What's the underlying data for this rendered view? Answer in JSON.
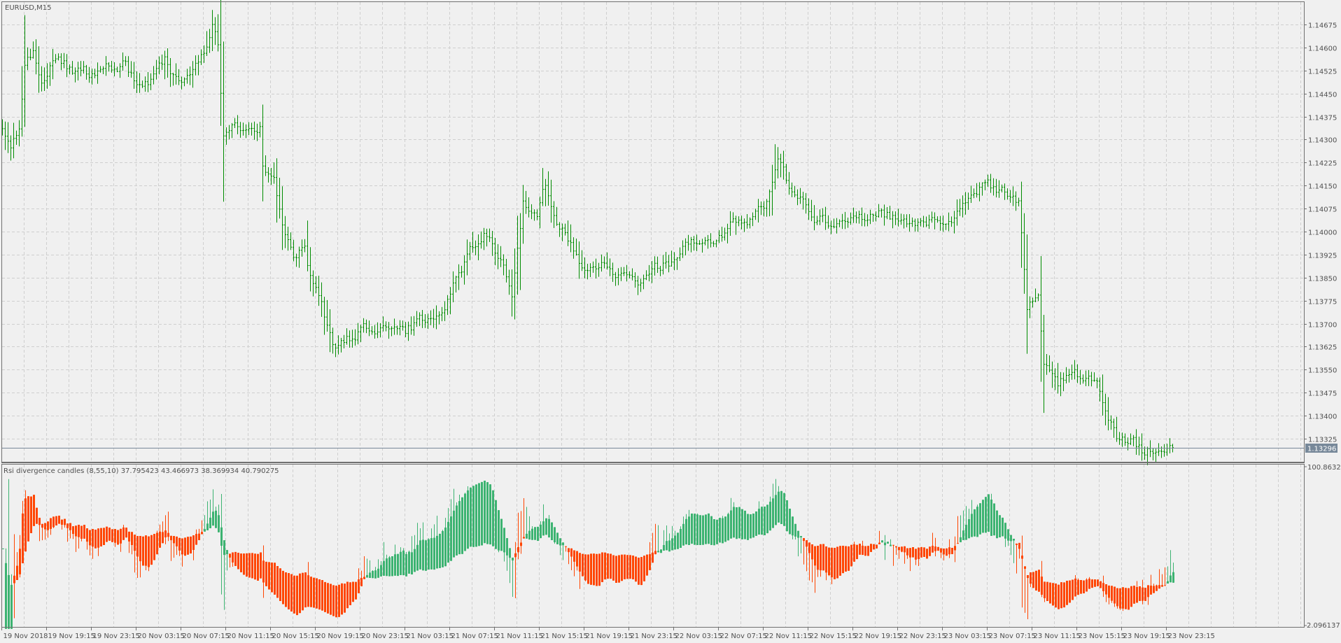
{
  "window": {
    "symbol_label": "EURUSD,M15"
  },
  "indicator": {
    "label": "Rsi divergence candles (8,55,10) 37.795423 43.466973 38.369934 40.790275",
    "scale_max": "100.863248",
    "scale_min": "2.096137"
  },
  "price_axis": {
    "ticks": [
      "1.14675",
      "1.14600",
      "1.14525",
      "1.14450",
      "1.14375",
      "1.14300",
      "1.14225",
      "1.14150",
      "1.14075",
      "1.14000",
      "1.13925",
      "1.13850",
      "1.13775",
      "1.13700",
      "1.13625",
      "1.13550",
      "1.13475",
      "1.13400",
      "1.13325"
    ],
    "current_price": "1.13296"
  },
  "time_axis": {
    "labels": [
      "19 Nov 2018",
      "19 Nov 19:15",
      "19 Nov 23:15",
      "20 Nov 03:15",
      "20 Nov 07:15",
      "20 Nov 11:15",
      "20 Nov 15:15",
      "20 Nov 19:15",
      "20 Nov 23:15",
      "21 Nov 03:15",
      "21 Nov 07:15",
      "21 Nov 11:15",
      "21 Nov 15:15",
      "21 Nov 19:15",
      "21 Nov 23:15",
      "22 Nov 03:15",
      "22 Nov 07:15",
      "22 Nov 11:15",
      "22 Nov 15:15",
      "22 Nov 19:15",
      "22 Nov 23:15",
      "23 Nov 03:15",
      "23 Nov 07:15",
      "23 Nov 11:15",
      "23 Nov 15:15",
      "23 Nov 19:15",
      "23 Nov 23:15"
    ]
  },
  "colors": {
    "background": "#f0f0f0",
    "bars": "#008c00",
    "grid": "#cfcfcf",
    "axis_text": "#505050",
    "current_price": "#778899",
    "indicator_up": "#3cb371",
    "indicator_down": "#ff4500"
  },
  "chart_data": {
    "type": "ohlc",
    "symbol": "EURUSD",
    "timeframe": "M15",
    "start": "19 Nov 2018 15:15",
    "end": "23 Nov 2018 23:45",
    "y_range": [
      1.1325,
      1.14755
    ],
    "grid": true,
    "last_close": 1.13296,
    "close_path": [
      [
        "19 Nov 15:15",
        1.1432
      ],
      [
        "19 Nov 16:00",
        1.1428
      ],
      [
        "19 Nov 16:45",
        1.1435
      ],
      [
        "19 Nov 17:15",
        1.1455
      ],
      [
        "19 Nov 18:00",
        1.1458
      ],
      [
        "19 Nov 18:45",
        1.145
      ],
      [
        "19 Nov 19:45",
        1.1455
      ],
      [
        "19 Nov 21:15",
        1.1453
      ],
      [
        "19 Nov 22:45",
        1.1452
      ],
      [
        "20 Nov 00:30",
        1.1453
      ],
      [
        "20 Nov 02:00",
        1.1455
      ],
      [
        "20 Nov 03:30",
        1.1447
      ],
      [
        "20 Nov 04:45",
        1.145
      ],
      [
        "20 Nov 05:45",
        1.1455
      ],
      [
        "20 Nov 06:45",
        1.145
      ],
      [
        "20 Nov 08:00",
        1.1452
      ],
      [
        "20 Nov 09:15",
        1.1458
      ],
      [
        "20 Nov 10:00",
        1.1468
      ],
      [
        "20 Nov 10:30",
        1.1462
      ],
      [
        "20 Nov 11:00",
        1.1432
      ],
      [
        "20 Nov 11:45",
        1.1435
      ],
      [
        "20 Nov 13:15",
        1.1432
      ],
      [
        "20 Nov 14:15",
        1.1433
      ],
      [
        "20 Nov 14:30",
        1.142
      ],
      [
        "20 Nov 15:30",
        1.1415
      ],
      [
        "20 Nov 16:15",
        1.14
      ],
      [
        "20 Nov 17:15",
        1.1393
      ],
      [
        "20 Nov 18:15",
        1.1395
      ],
      [
        "20 Nov 18:45",
        1.1385
      ],
      [
        "20 Nov 19:45",
        1.1375
      ],
      [
        "20 Nov 20:45",
        1.1362
      ],
      [
        "20 Nov 21:30",
        1.1363
      ],
      [
        "20 Nov 23:15",
        1.1368
      ],
      [
        "21 Nov 01:45",
        1.137
      ],
      [
        "21 Nov 03:15",
        1.1368
      ],
      [
        "21 Nov 05:30",
        1.1372
      ],
      [
        "21 Nov 07:00",
        1.1378
      ],
      [
        "21 Nov 08:30",
        1.139
      ],
      [
        "21 Nov 09:45",
        1.1398
      ],
      [
        "21 Nov 10:45",
        1.14
      ],
      [
        "21 Nov 12:00",
        1.1388
      ],
      [
        "21 Nov 12:45",
        1.138
      ],
      [
        "21 Nov 13:45",
        1.141
      ],
      [
        "21 Nov 15:00",
        1.1405
      ],
      [
        "21 Nov 15:45",
        1.1415
      ],
      [
        "21 Nov 16:45",
        1.1405
      ],
      [
        "21 Nov 18:00",
        1.1395
      ],
      [
        "21 Nov 19:15",
        1.1388
      ],
      [
        "21 Nov 20:45",
        1.139
      ],
      [
        "21 Nov 22:15",
        1.1385
      ],
      [
        "21 Nov 23:45",
        1.1382
      ],
      [
        "22 Nov 01:15",
        1.1388
      ],
      [
        "22 Nov 02:45",
        1.139
      ],
      [
        "22 Nov 04:15",
        1.1398
      ],
      [
        "22 Nov 05:45",
        1.1397
      ],
      [
        "22 Nov 07:15",
        1.1398
      ],
      [
        "22 Nov 08:45",
        1.1403
      ],
      [
        "22 Nov 10:30",
        1.1405
      ],
      [
        "22 Nov 11:30",
        1.141
      ],
      [
        "22 Nov 12:30",
        1.1425
      ],
      [
        "22 Nov 13:30",
        1.1415
      ],
      [
        "22 Nov 14:45",
        1.141
      ],
      [
        "22 Nov 15:45",
        1.1404
      ],
      [
        "22 Nov 17:45",
        1.1403
      ],
      [
        "22 Nov 19:30",
        1.1404
      ],
      [
        "22 Nov 21:45",
        1.1406
      ],
      [
        "23 Nov 00:15",
        1.1403
      ],
      [
        "23 Nov 01:45",
        1.1402
      ],
      [
        "23 Nov 04:00",
        1.1405
      ],
      [
        "23 Nov 05:30",
        1.1413
      ],
      [
        "23 Nov 07:00",
        1.1415
      ],
      [
        "23 Nov 09:00",
        1.1413
      ],
      [
        "23 Nov 10:00",
        1.141
      ],
      [
        "23 Nov 10:45",
        1.1375
      ],
      [
        "23 Nov 11:45",
        1.1378
      ],
      [
        "23 Nov 12:15",
        1.1358
      ],
      [
        "23 Nov 13:30",
        1.135
      ],
      [
        "23 Nov 14:45",
        1.1355
      ],
      [
        "23 Nov 15:45",
        1.1352
      ],
      [
        "23 Nov 17:00",
        1.135
      ],
      [
        "23 Nov 18:00",
        1.134
      ],
      [
        "23 Nov 18:45",
        1.1333
      ],
      [
        "23 Nov 20:00",
        1.1332
      ],
      [
        "23 Nov 21:15",
        1.1328
      ],
      [
        "23 Nov 22:15",
        1.133
      ],
      [
        "23 Nov 23:45",
        1.13296
      ]
    ],
    "indicator": {
      "name": "Rsi divergence candles",
      "params": [
        8,
        55,
        10
      ],
      "y_range": [
        2.096137,
        100.863248
      ],
      "values": [
        37.795423,
        43.466973,
        38.369934,
        40.790275
      ]
    }
  }
}
